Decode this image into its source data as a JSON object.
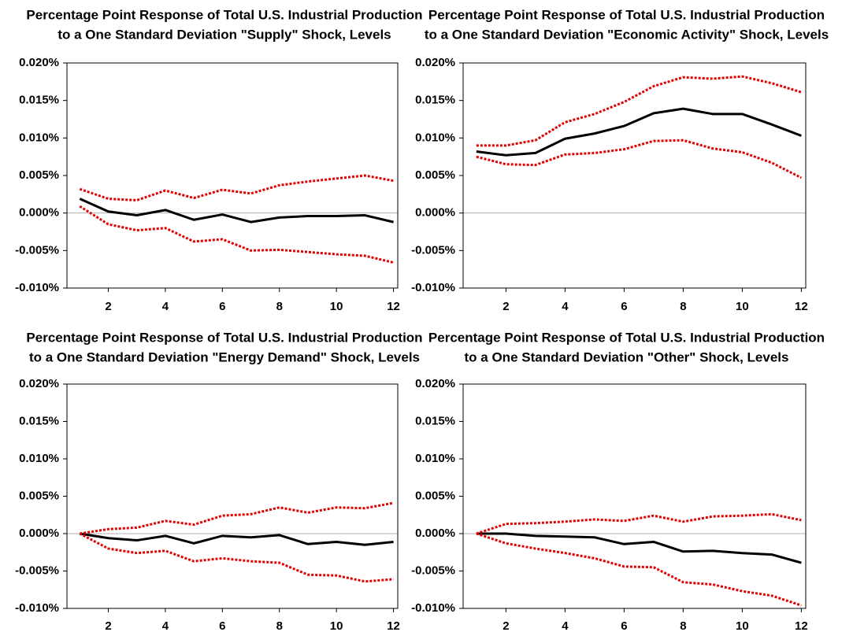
{
  "chart_data": [
    {
      "type": "line",
      "title": [
        "Percentage Point Response of Total U.S. Industrial Production",
        "to a One Standard Deviation \"Supply\" Shock, Levels"
      ],
      "x": [
        1,
        2,
        3,
        4,
        5,
        6,
        7,
        8,
        9,
        10,
        11,
        12
      ],
      "xlim": [
        0.55,
        12.15
      ],
      "xticks": [
        2,
        4,
        6,
        8,
        10,
        12
      ],
      "ylim": [
        -0.01,
        0.02
      ],
      "yticks": [
        {
          "value": -0.01,
          "label": "-0.010%"
        },
        {
          "value": -0.005,
          "label": "-0.005%"
        },
        {
          "value": 0,
          "label": "0.000%"
        },
        {
          "value": 0.005,
          "label": "0.005%"
        },
        {
          "value": 0.01,
          "label": "0.010%"
        },
        {
          "value": 0.015,
          "label": "0.015%"
        },
        {
          "value": 0.02,
          "label": "0.020%"
        }
      ],
      "zero_line": true,
      "series": [
        {
          "color": "#000000",
          "style": "solid",
          "values": [
            0.0019,
            0.0002,
            -0.0003,
            0.0004,
            -0.0009,
            -0.0002,
            -0.0012,
            -0.0006,
            -0.0004,
            -0.0004,
            -0.0003,
            -0.0012
          ]
        },
        {
          "color": "#e00000",
          "style": "dotted",
          "values": [
            0.0032,
            0.0019,
            0.0017,
            0.003,
            0.002,
            0.0031,
            0.0026,
            0.0037,
            0.0042,
            0.0046,
            0.005,
            0.0043
          ]
        },
        {
          "color": "#e00000",
          "style": "dotted",
          "values": [
            0.0009,
            -0.0015,
            -0.0023,
            -0.002,
            -0.0038,
            -0.0035,
            -0.005,
            -0.0049,
            -0.0052,
            -0.0055,
            -0.0057,
            -0.0066
          ]
        }
      ]
    },
    {
      "type": "line",
      "title": [
        "Percentage Point Response of Total U.S. Industrial Production",
        "to a One Standard Deviation \"Economic Activity\" Shock, Levels"
      ],
      "x": [
        1,
        2,
        3,
        4,
        5,
        6,
        7,
        8,
        9,
        10,
        11,
        12
      ],
      "xlim": [
        0.55,
        12.15
      ],
      "xticks": [
        2,
        4,
        6,
        8,
        10,
        12
      ],
      "ylim": [
        -0.01,
        0.02
      ],
      "yticks": [
        {
          "value": -0.01,
          "label": "-0.010%"
        },
        {
          "value": -0.005,
          "label": "-0.005%"
        },
        {
          "value": 0,
          "label": "0.000%"
        },
        {
          "value": 0.005,
          "label": "0.005%"
        },
        {
          "value": 0.01,
          "label": "0.010%"
        },
        {
          "value": 0.015,
          "label": "0.015%"
        },
        {
          "value": 0.02,
          "label": "0.020%"
        }
      ],
      "zero_line": true,
      "series": [
        {
          "color": "#000000",
          "style": "solid",
          "values": [
            0.0082,
            0.0077,
            0.008,
            0.0099,
            0.0106,
            0.0116,
            0.0133,
            0.0139,
            0.0132,
            0.0132,
            0.0118,
            0.0103
          ]
        },
        {
          "color": "#e00000",
          "style": "dotted",
          "values": [
            0.009,
            0.009,
            0.0097,
            0.0121,
            0.0132,
            0.0148,
            0.0169,
            0.0181,
            0.0179,
            0.0182,
            0.0173,
            0.0161
          ]
        },
        {
          "color": "#e00000",
          "style": "dotted",
          "values": [
            0.0075,
            0.0065,
            0.0064,
            0.0078,
            0.008,
            0.0085,
            0.0096,
            0.0097,
            0.0086,
            0.0081,
            0.0067,
            0.0047
          ]
        }
      ]
    },
    {
      "type": "line",
      "title": [
        "Percentage Point Response of Total U.S. Industrial Production",
        "to a One Standard Deviation \"Energy Demand\" Shock, Levels"
      ],
      "x": [
        1,
        2,
        3,
        4,
        5,
        6,
        7,
        8,
        9,
        10,
        11,
        12
      ],
      "xlim": [
        0.55,
        12.15
      ],
      "xticks": [
        2,
        4,
        6,
        8,
        10,
        12
      ],
      "ylim": [
        -0.01,
        0.02
      ],
      "yticks": [
        {
          "value": -0.01,
          "label": "-0.010%"
        },
        {
          "value": -0.005,
          "label": "-0.005%"
        },
        {
          "value": 0,
          "label": "0.000%"
        },
        {
          "value": 0.005,
          "label": "0.005%"
        },
        {
          "value": 0.01,
          "label": "0.010%"
        },
        {
          "value": 0.015,
          "label": "0.015%"
        },
        {
          "value": 0.02,
          "label": "0.020%"
        }
      ],
      "zero_line": true,
      "series": [
        {
          "color": "#000000",
          "style": "solid",
          "values": [
            0,
            -0.0006,
            -0.0009,
            -0.0003,
            -0.0013,
            -0.0003,
            -0.0005,
            -0.0002,
            -0.0014,
            -0.0011,
            -0.0015,
            -0.0011
          ]
        },
        {
          "color": "#e00000",
          "style": "dotted",
          "values": [
            0,
            0.0006,
            0.0008,
            0.0017,
            0.0012,
            0.0024,
            0.0026,
            0.0035,
            0.0028,
            0.0035,
            0.0034,
            0.0041
          ]
        },
        {
          "color": "#e00000",
          "style": "dotted",
          "values": [
            0,
            -0.002,
            -0.0026,
            -0.0023,
            -0.0037,
            -0.0033,
            -0.0037,
            -0.0039,
            -0.0055,
            -0.0056,
            -0.0064,
            -0.0061
          ]
        }
      ]
    },
    {
      "type": "line",
      "title": [
        "Percentage Point Response of Total U.S. Industrial Production",
        "to a One Standard Deviation \"Other\" Shock, Levels"
      ],
      "x": [
        1,
        2,
        3,
        4,
        5,
        6,
        7,
        8,
        9,
        10,
        11,
        12
      ],
      "xlim": [
        0.55,
        12.15
      ],
      "xticks": [
        2,
        4,
        6,
        8,
        10,
        12
      ],
      "ylim": [
        -0.01,
        0.02
      ],
      "yticks": [
        {
          "value": -0.01,
          "label": "-0.010%"
        },
        {
          "value": -0.005,
          "label": "-0.005%"
        },
        {
          "value": 0,
          "label": "0.000%"
        },
        {
          "value": 0.005,
          "label": "0.005%"
        },
        {
          "value": 0.01,
          "label": "0.010%"
        },
        {
          "value": 0.015,
          "label": "0.015%"
        },
        {
          "value": 0.02,
          "label": "0.020%"
        }
      ],
      "zero_line": true,
      "series": [
        {
          "color": "#000000",
          "style": "solid",
          "values": [
            0,
            0,
            -0.0003,
            -0.0004,
            -0.0005,
            -0.0014,
            -0.0011,
            -0.0024,
            -0.0023,
            -0.0026,
            -0.0028,
            -0.0039
          ]
        },
        {
          "color": "#e00000",
          "style": "dotted",
          "values": [
            0,
            0.0013,
            0.0014,
            0.0016,
            0.0019,
            0.0017,
            0.0024,
            0.0016,
            0.0023,
            0.0024,
            0.0026,
            0.0018
          ]
        },
        {
          "color": "#e00000",
          "style": "dotted",
          "values": [
            0,
            -0.0013,
            -0.002,
            -0.0026,
            -0.0033,
            -0.0044,
            -0.0045,
            -0.0065,
            -0.0068,
            -0.0077,
            -0.0083,
            -0.0096
          ]
        }
      ]
    }
  ]
}
